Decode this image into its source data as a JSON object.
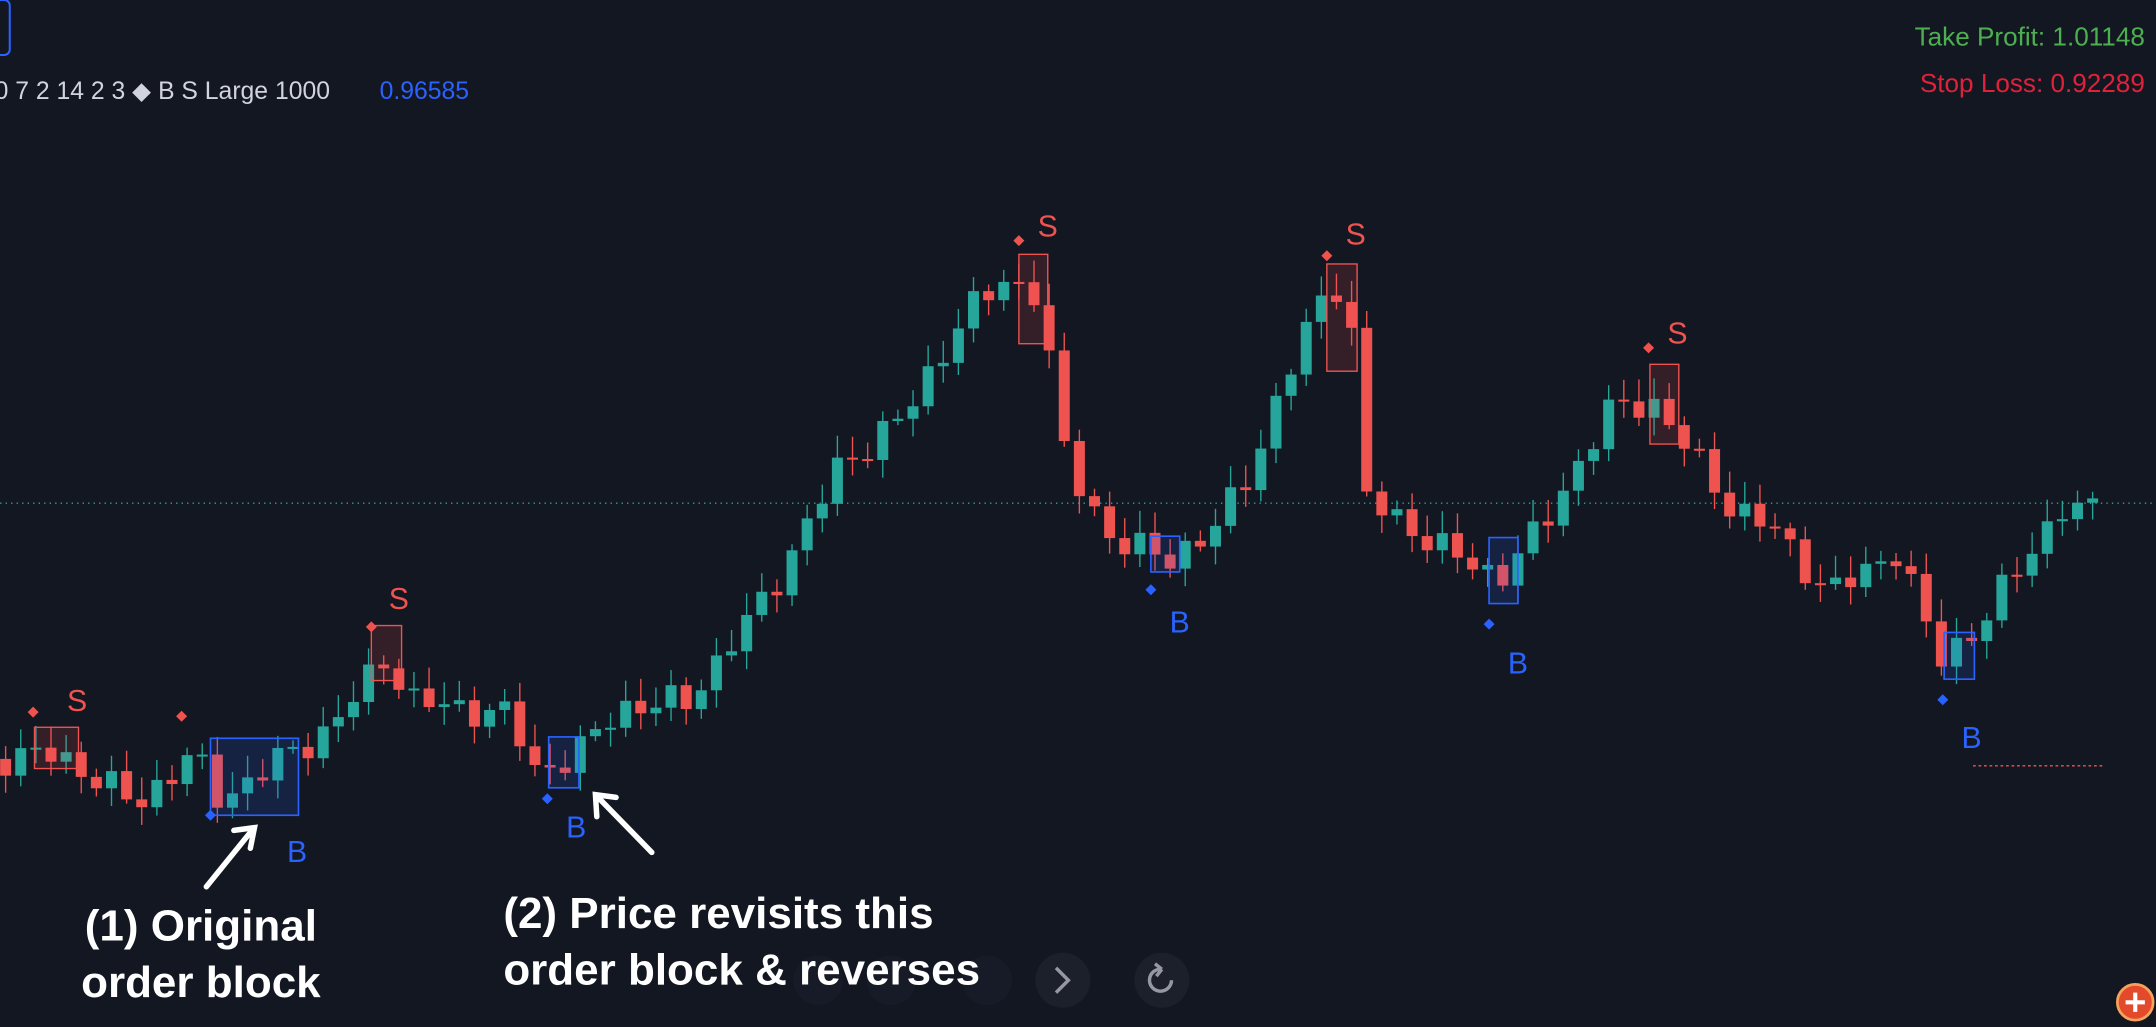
{
  "header": {
    "indicator_settings": "0 7 2 14 2 3 ◆ B S Large 1000",
    "last_value": "0.96585",
    "take_profit": "Take Profit: 1.01148",
    "stop_loss": "Stop Loss: 0.92289"
  },
  "signals": [
    {
      "label": "S"
    },
    {
      "label": "S"
    },
    {
      "label": "S"
    },
    {
      "label": "S"
    },
    {
      "label": "S"
    },
    {
      "label": "B"
    },
    {
      "label": "B"
    },
    {
      "label": "B"
    },
    {
      "label": "B"
    },
    {
      "label": "B"
    }
  ],
  "annotations": [
    {
      "lines": [
        "(1) Original",
        "order block"
      ]
    },
    {
      "lines": [
        "(2) Price revisits this",
        "order block & reverses"
      ]
    }
  ]
}
